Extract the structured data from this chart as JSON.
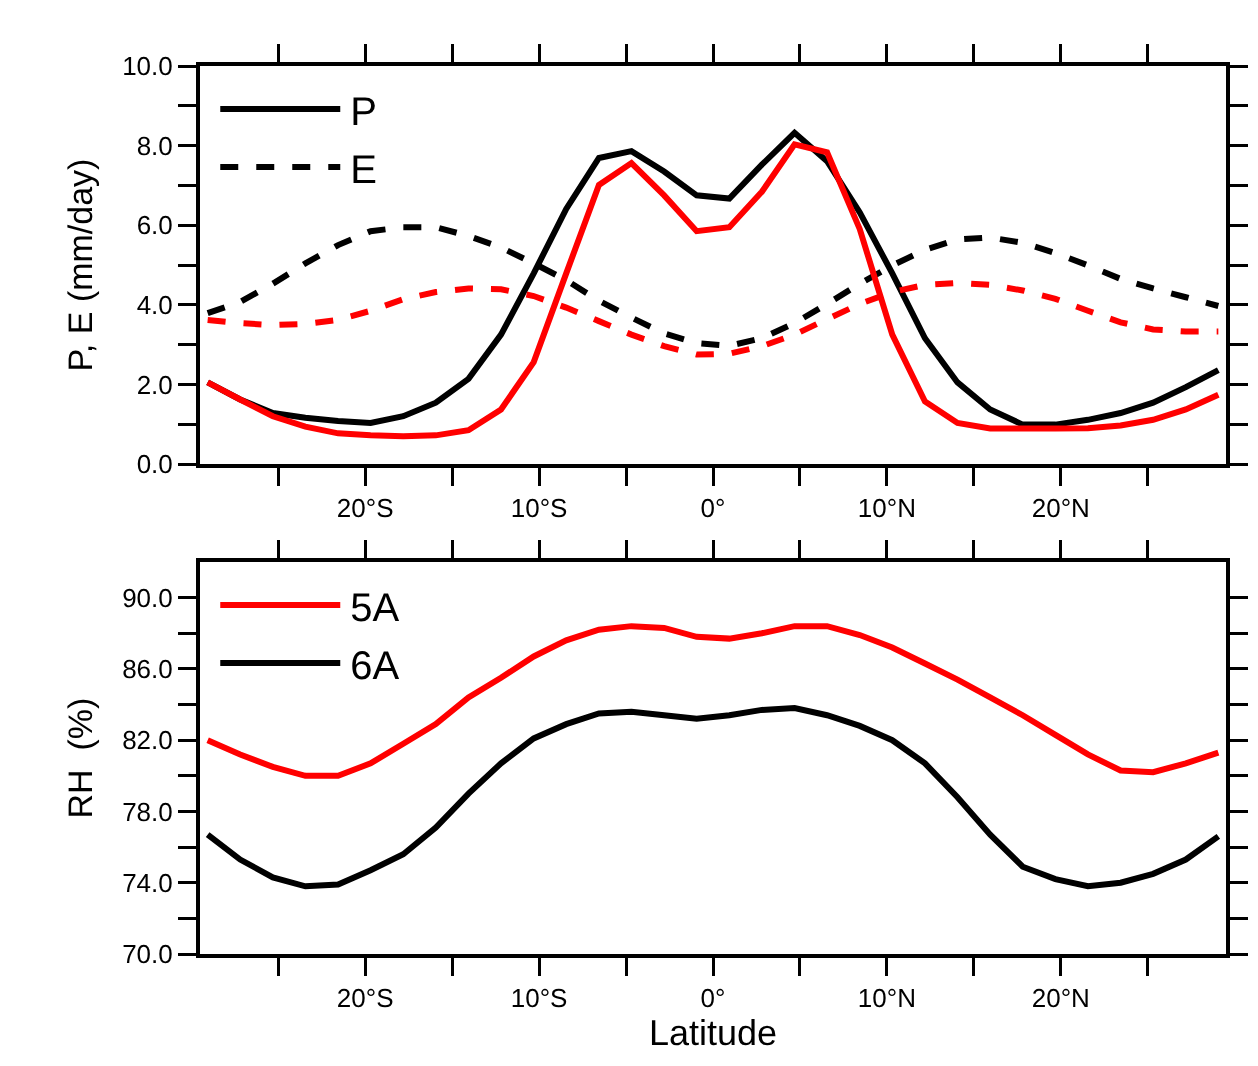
{
  "chart_data": [
    {
      "type": "line",
      "ylabel": "P, E (mm/day)",
      "legend": "top left",
      "x": [
        -29.06,
        -27.19,
        -25.31,
        -23.44,
        -21.56,
        -19.69,
        -17.81,
        -15.94,
        -14.06,
        -12.19,
        -10.31,
        -8.44,
        -6.56,
        -4.69,
        -2.81,
        -0.94,
        0.94,
        2.81,
        4.69,
        6.56,
        8.44,
        10.31,
        12.19,
        14.06,
        15.94,
        17.81,
        19.69,
        21.56,
        23.44,
        25.31,
        27.19,
        29.06
      ],
      "xlim": [
        -29.5,
        29.5
      ],
      "xticks": [
        {
          "value": -25,
          "label": null
        },
        {
          "value": -20,
          "label": "20°S"
        },
        {
          "value": -15,
          "label": null
        },
        {
          "value": -10,
          "label": "10°S"
        },
        {
          "value": -5,
          "label": null
        },
        {
          "value": 0,
          "label": "0°"
        },
        {
          "value": 5,
          "label": null
        },
        {
          "value": 10,
          "label": "10°N"
        },
        {
          "value": 15,
          "label": null
        },
        {
          "value": 20,
          "label": "20°N"
        },
        {
          "value": 25,
          "label": null
        }
      ],
      "ylim": [
        0,
        10
      ],
      "yticks": [
        {
          "value": 0,
          "label": "0.0"
        },
        {
          "value": 1,
          "label": null
        },
        {
          "value": 2,
          "label": "2.0"
        },
        {
          "value": 3,
          "label": null
        },
        {
          "value": 4,
          "label": "4.0"
        },
        {
          "value": 5,
          "label": null
        },
        {
          "value": 6,
          "label": "6.0"
        },
        {
          "value": 7,
          "label": null
        },
        {
          "value": 8,
          "label": "8.0"
        },
        {
          "value": 9,
          "label": null
        },
        {
          "value": 10,
          "label": "10.0"
        }
      ],
      "series": [
        {
          "name": "P",
          "color": "#000000",
          "line_style": "solid",
          "values": [
            2.05,
            1.62,
            1.28,
            1.16,
            1.08,
            1.03,
            1.2,
            1.54,
            2.14,
            3.25,
            4.79,
            6.41,
            7.69,
            7.86,
            7.35,
            6.75,
            6.67,
            7.52,
            8.32,
            7.61,
            6.32,
            4.79,
            3.16,
            2.05,
            1.37,
            0.99,
            0.99,
            1.11,
            1.28,
            1.54,
            1.93,
            2.36
          ]
        },
        {
          "name": "E",
          "color": "#000000",
          "line_style": "dashed",
          "values": [
            3.79,
            4.07,
            4.53,
            5.04,
            5.5,
            5.85,
            5.95,
            5.95,
            5.73,
            5.44,
            5.04,
            4.62,
            4.1,
            3.68,
            3.28,
            3.04,
            2.97,
            3.16,
            3.54,
            4.02,
            4.53,
            4.99,
            5.38,
            5.64,
            5.69,
            5.56,
            5.3,
            4.99,
            4.65,
            4.41,
            4.19,
            3.97
          ]
        },
        {
          "color": "#ff0000",
          "line_style": "solid",
          "values": [
            2.05,
            1.62,
            1.2,
            0.94,
            0.77,
            0.72,
            0.7,
            0.72,
            0.85,
            1.37,
            2.56,
            4.79,
            7.01,
            7.56,
            6.75,
            5.85,
            5.95,
            6.84,
            8.03,
            7.83,
            5.9,
            3.25,
            1.57,
            1.03,
            0.89,
            0.89,
            0.89,
            0.9,
            0.97,
            1.11,
            1.37,
            1.74
          ]
        },
        {
          "color": "#ff0000",
          "line_style": "dashed",
          "values": [
            3.62,
            3.54,
            3.49,
            3.52,
            3.62,
            3.85,
            4.14,
            4.32,
            4.41,
            4.39,
            4.22,
            3.93,
            3.59,
            3.25,
            2.96,
            2.75,
            2.77,
            2.96,
            3.25,
            3.64,
            4.02,
            4.32,
            4.5,
            4.55,
            4.5,
            4.36,
            4.15,
            3.85,
            3.56,
            3.38,
            3.33,
            3.33
          ]
        }
      ]
    },
    {
      "type": "line",
      "ylabel": "RH  (%)",
      "xlabel": "Latitude",
      "legend": "top left",
      "x": [
        -29.06,
        -27.19,
        -25.31,
        -23.44,
        -21.56,
        -19.69,
        -17.81,
        -15.94,
        -14.06,
        -12.19,
        -10.31,
        -8.44,
        -6.56,
        -4.69,
        -2.81,
        -0.94,
        0.94,
        2.81,
        4.69,
        6.56,
        8.44,
        10.31,
        12.19,
        14.06,
        15.94,
        17.81,
        19.69,
        21.56,
        23.44,
        25.31,
        27.19,
        29.06
      ],
      "xlim": [
        -29.5,
        29.5
      ],
      "xticks": [
        {
          "value": -25,
          "label": null
        },
        {
          "value": -20,
          "label": "20°S"
        },
        {
          "value": -15,
          "label": null
        },
        {
          "value": -10,
          "label": "10°S"
        },
        {
          "value": -5,
          "label": null
        },
        {
          "value": 0,
          "label": "0°"
        },
        {
          "value": 5,
          "label": null
        },
        {
          "value": 10,
          "label": "10°N"
        },
        {
          "value": 15,
          "label": null
        },
        {
          "value": 20,
          "label": "20°N"
        },
        {
          "value": 25,
          "label": null
        }
      ],
      "ylim": [
        70,
        92
      ],
      "yticks": [
        {
          "value": 70,
          "label": "70.0"
        },
        {
          "value": 72,
          "label": null
        },
        {
          "value": 74,
          "label": "74.0"
        },
        {
          "value": 76,
          "label": null
        },
        {
          "value": 78,
          "label": "78.0"
        },
        {
          "value": 80,
          "label": null
        },
        {
          "value": 82,
          "label": "82.0"
        },
        {
          "value": 84,
          "label": null
        },
        {
          "value": 86,
          "label": "86.0"
        },
        {
          "value": 88,
          "label": null
        },
        {
          "value": 90,
          "label": "90.0"
        }
      ],
      "series": [
        {
          "name": "5A",
          "color": "#ff0000",
          "line_style": "solid",
          "values": [
            82.0,
            81.2,
            80.5,
            80.0,
            80.0,
            80.7,
            81.8,
            82.9,
            84.4,
            85.5,
            86.7,
            87.6,
            88.2,
            88.4,
            88.3,
            87.8,
            87.7,
            88.0,
            88.4,
            88.4,
            87.9,
            87.2,
            86.3,
            85.4,
            84.4,
            83.4,
            82.3,
            81.2,
            80.3,
            80.2,
            80.7,
            81.3
          ]
        },
        {
          "name": "6A",
          "color": "#000000",
          "line_style": "solid",
          "values": [
            76.7,
            75.3,
            74.3,
            73.8,
            73.9,
            74.7,
            75.6,
            77.1,
            79.0,
            80.7,
            82.1,
            82.9,
            83.5,
            83.6,
            83.4,
            83.2,
            83.4,
            83.7,
            83.8,
            83.4,
            82.8,
            82.0,
            80.7,
            78.8,
            76.7,
            74.9,
            74.2,
            73.8,
            74.0,
            74.5,
            75.3,
            76.6
          ]
        }
      ]
    }
  ]
}
